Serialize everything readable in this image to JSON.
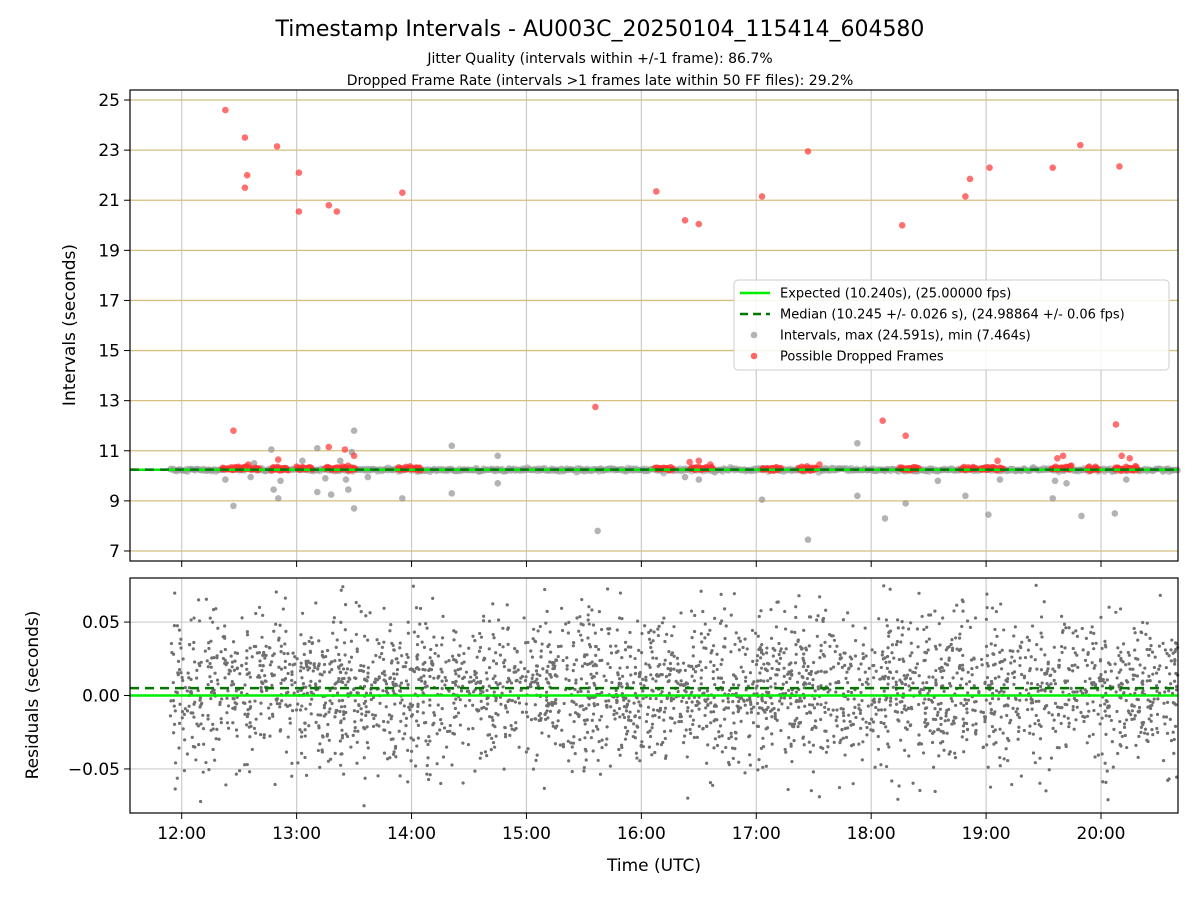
{
  "figure": {
    "title": "Timestamp Intervals - AU003C_20250104_115414_604580",
    "subtitle_line1": "Jitter Quality (intervals within +/-1 frame): 86.7%",
    "subtitle_line2": "Dropped Frame Rate (intervals >1 frames late within 50 FF files): 29.2%"
  },
  "colors": {
    "expected": "#00ee00",
    "median": "#007700",
    "intervals": "#999999",
    "dropped": "#ff3333",
    "hgrid": "#d4bf7f",
    "vgrid": "#cccccc",
    "residuals": "#707070"
  },
  "chart_data": [
    {
      "type": "scatter",
      "panel": "intervals",
      "ylabel": "Intervals (seconds)",
      "xlim": [
        11.55,
        20.67
      ],
      "ylim": [
        6.6,
        25.4
      ],
      "yticks": [
        7,
        9,
        11,
        13,
        15,
        17,
        19,
        21,
        23,
        25
      ],
      "xticks": [
        12,
        13,
        14,
        15,
        16,
        17,
        18,
        19,
        20
      ],
      "xtick_labels": [
        "12:00",
        "13:00",
        "14:00",
        "15:00",
        "16:00",
        "17:00",
        "18:00",
        "19:00",
        "20:00"
      ],
      "hgrid": true,
      "vgrid": true,
      "legend_position": "center-right",
      "x_start": 11.9,
      "x_end": 20.67,
      "expected_value": 10.24,
      "median_value": 10.245,
      "legend": [
        {
          "label": "Expected (10.240s), (25.00000 fps)",
          "style": "solid-line",
          "color_key": "expected"
        },
        {
          "label": "Median (10.245 +/- 0.026 s), (24.98864 +/- 0.06 fps)",
          "style": "dashed-line",
          "color_key": "median"
        },
        {
          "label": "Intervals, max (24.591s), min (7.464s)",
          "style": "marker",
          "color_key": "intervals"
        },
        {
          "label": "Possible Dropped Frames",
          "style": "marker",
          "color_key": "dropped"
        }
      ],
      "series": [
        {
          "name": "Intervals, max (24.591s), min (7.464s)",
          "points": [
            [
              12.45,
              8.8
            ],
            [
              12.6,
              9.95
            ],
            [
              12.78,
              11.05
            ],
            [
              12.8,
              9.45
            ],
            [
              12.84,
              9.1
            ],
            [
              12.86,
              9.8
            ],
            [
              12.63,
              10.5
            ],
            [
              13.18,
              11.1
            ],
            [
              13.18,
              9.35
            ],
            [
              13.3,
              9.25
            ],
            [
              13.43,
              9.85
            ],
            [
              13.45,
              9.45
            ],
            [
              13.48,
              10.95
            ],
            [
              13.5,
              11.8
            ],
            [
              13.5,
              8.7
            ],
            [
              13.38,
              10.6
            ],
            [
              13.25,
              9.9
            ],
            [
              13.62,
              9.95
            ],
            [
              13.92,
              9.1
            ],
            [
              14.35,
              11.2
            ],
            [
              14.35,
              9.3
            ],
            [
              14.75,
              10.8
            ],
            [
              14.75,
              9.7
            ],
            [
              15.62,
              7.8
            ],
            [
              16.38,
              9.95
            ],
            [
              16.5,
              9.85
            ],
            [
              17.05,
              9.05
            ],
            [
              17.45,
              7.45
            ],
            [
              17.88,
              11.3
            ],
            [
              17.88,
              9.2
            ],
            [
              18.12,
              8.3
            ],
            [
              18.3,
              8.9
            ],
            [
              18.58,
              9.8
            ],
            [
              18.82,
              9.2
            ],
            [
              19.12,
              9.85
            ],
            [
              19.02,
              8.45
            ],
            [
              19.58,
              9.1
            ],
            [
              19.6,
              9.8
            ],
            [
              19.7,
              9.7
            ],
            [
              19.83,
              8.4
            ],
            [
              20.12,
              8.5
            ],
            [
              20.22,
              9.85
            ],
            [
              12.38,
              9.85
            ],
            [
              13.05,
              10.6
            ]
          ]
        },
        {
          "name": "Possible Dropped Frames",
          "points": [
            [
              12.38,
              24.6
            ],
            [
              12.55,
              23.5
            ],
            [
              12.57,
              22.0
            ],
            [
              12.55,
              21.5
            ],
            [
              12.83,
              23.15
            ],
            [
              13.02,
              22.1
            ],
            [
              13.02,
              20.55
            ],
            [
              13.28,
              20.8
            ],
            [
              13.35,
              20.55
            ],
            [
              13.92,
              21.3
            ],
            [
              12.45,
              11.8
            ],
            [
              13.28,
              11.15
            ],
            [
              13.42,
              11.05
            ],
            [
              13.5,
              10.8
            ],
            [
              12.58,
              10.45
            ],
            [
              12.84,
              10.65
            ],
            [
              15.6,
              12.75
            ],
            [
              16.13,
              21.35
            ],
            [
              16.38,
              20.2
            ],
            [
              16.5,
              20.05
            ],
            [
              16.5,
              10.6
            ],
            [
              16.42,
              10.55
            ],
            [
              16.6,
              10.45
            ],
            [
              17.05,
              21.15
            ],
            [
              17.45,
              22.95
            ],
            [
              17.55,
              10.45
            ],
            [
              18.1,
              12.2
            ],
            [
              18.3,
              11.6
            ],
            [
              18.27,
              20.0
            ],
            [
              18.82,
              21.15
            ],
            [
              18.86,
              21.85
            ],
            [
              19.03,
              22.3
            ],
            [
              19.1,
              10.6
            ],
            [
              19.58,
              22.3
            ],
            [
              19.62,
              10.7
            ],
            [
              19.67,
              10.8
            ],
            [
              19.82,
              23.2
            ],
            [
              20.13,
              12.05
            ],
            [
              20.16,
              22.35
            ],
            [
              20.18,
              10.8
            ],
            [
              20.25,
              10.7
            ]
          ],
          "clusters": [
            [
              12.35,
              12.68
            ],
            [
              12.78,
              12.93
            ],
            [
              13.0,
              13.14
            ],
            [
              13.25,
              13.52
            ],
            [
              13.88,
              14.08
            ],
            [
              16.12,
              16.28
            ],
            [
              16.43,
              16.62
            ],
            [
              17.05,
              17.22
            ],
            [
              17.37,
              17.53
            ],
            [
              18.25,
              18.42
            ],
            [
              18.78,
              18.92
            ],
            [
              18.95,
              19.1
            ],
            [
              19.12,
              19.15
            ],
            [
              19.57,
              19.75
            ],
            [
              19.88,
              19.98
            ],
            [
              20.12,
              20.32
            ]
          ]
        }
      ]
    },
    {
      "type": "scatter",
      "panel": "residuals",
      "xlabel": "Time (UTC)",
      "ylabel": "Residuals (seconds)",
      "xlim": [
        11.55,
        20.67
      ],
      "ylim": [
        -0.08,
        0.08
      ],
      "yticks": [
        -0.05,
        0.0,
        0.05
      ],
      "ytick_labels": [
        "−0.05",
        "0.00",
        "0.05"
      ],
      "xticks": [
        12,
        13,
        14,
        15,
        16,
        17,
        18,
        19,
        20
      ],
      "xtick_labels": [
        "12:00",
        "13:00",
        "14:00",
        "15:00",
        "16:00",
        "17:00",
        "18:00",
        "19:00",
        "20:00"
      ],
      "grid": true,
      "expected_residual": 0.0,
      "median_residual": 0.005,
      "residual_spread_sd": 0.026,
      "residual_count": 3100
    }
  ]
}
